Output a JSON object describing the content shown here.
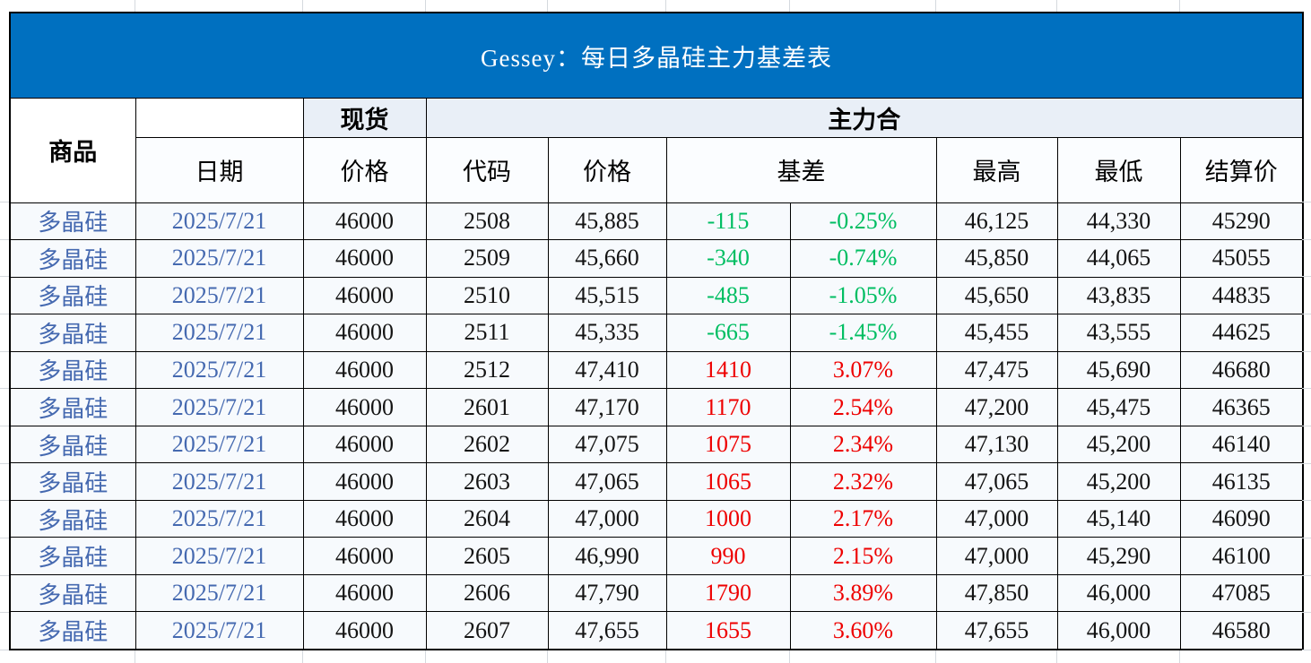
{
  "title": "Gessey：每日多晶硅主力基差表",
  "header": {
    "commodity": "商品",
    "date": "日期",
    "spot": "现货",
    "spot_price": "价格",
    "main_contract": "主力合",
    "code": "代码",
    "price": "价格",
    "basis": "基差",
    "high": "最高",
    "low": "最低",
    "settlement": "结算价"
  },
  "colors": {
    "title_bg": "#0070c0",
    "title_text": "#ffffff",
    "header_band_fill": "#e9eff7",
    "subheader_fill": "#fbfdff",
    "row_fill": "#f7fafd",
    "blue_text": "#4569b0",
    "negative_green": "#00be62",
    "positive_red": "#ee0000",
    "grid_border": "#000000"
  },
  "rows": [
    {
      "commodity": "多晶硅",
      "date": "2025/7/21",
      "spot_price": "46000",
      "code": "2508",
      "price": "45,885",
      "basis": "-115",
      "basis_pct": "-0.25%",
      "high": "46,125",
      "low": "44,330",
      "settlement": "45290"
    },
    {
      "commodity": "多晶硅",
      "date": "2025/7/21",
      "spot_price": "46000",
      "code": "2509",
      "price": "45,660",
      "basis": "-340",
      "basis_pct": "-0.74%",
      "high": "45,850",
      "low": "44,065",
      "settlement": "45055"
    },
    {
      "commodity": "多晶硅",
      "date": "2025/7/21",
      "spot_price": "46000",
      "code": "2510",
      "price": "45,515",
      "basis": "-485",
      "basis_pct": "-1.05%",
      "high": "45,650",
      "low": "43,835",
      "settlement": "44835"
    },
    {
      "commodity": "多晶硅",
      "date": "2025/7/21",
      "spot_price": "46000",
      "code": "2511",
      "price": "45,335",
      "basis": "-665",
      "basis_pct": "-1.45%",
      "high": "45,455",
      "low": "43,555",
      "settlement": "44625"
    },
    {
      "commodity": "多晶硅",
      "date": "2025/7/21",
      "spot_price": "46000",
      "code": "2512",
      "price": "47,410",
      "basis": "1410",
      "basis_pct": "3.07%",
      "high": "47,475",
      "low": "45,690",
      "settlement": "46680"
    },
    {
      "commodity": "多晶硅",
      "date": "2025/7/21",
      "spot_price": "46000",
      "code": "2601",
      "price": "47,170",
      "basis": "1170",
      "basis_pct": "2.54%",
      "high": "47,200",
      "low": "45,475",
      "settlement": "46365"
    },
    {
      "commodity": "多晶硅",
      "date": "2025/7/21",
      "spot_price": "46000",
      "code": "2602",
      "price": "47,075",
      "basis": "1075",
      "basis_pct": "2.34%",
      "high": "47,130",
      "low": "45,200",
      "settlement": "46140"
    },
    {
      "commodity": "多晶硅",
      "date": "2025/7/21",
      "spot_price": "46000",
      "code": "2603",
      "price": "47,065",
      "basis": "1065",
      "basis_pct": "2.32%",
      "high": "47,065",
      "low": "45,200",
      "settlement": "46135"
    },
    {
      "commodity": "多晶硅",
      "date": "2025/7/21",
      "spot_price": "46000",
      "code": "2604",
      "price": "47,000",
      "basis": "1000",
      "basis_pct": "2.17%",
      "high": "47,000",
      "low": "45,140",
      "settlement": "46090"
    },
    {
      "commodity": "多晶硅",
      "date": "2025/7/21",
      "spot_price": "46000",
      "code": "2605",
      "price": "46,990",
      "basis": "990",
      "basis_pct": "2.15%",
      "high": "47,000",
      "low": "45,290",
      "settlement": "46100"
    },
    {
      "commodity": "多晶硅",
      "date": "2025/7/21",
      "spot_price": "46000",
      "code": "2606",
      "price": "47,790",
      "basis": "1790",
      "basis_pct": "3.89%",
      "high": "47,850",
      "low": "46,000",
      "settlement": "47085"
    },
    {
      "commodity": "多晶硅",
      "date": "2025/7/21",
      "spot_price": "46000",
      "code": "2607",
      "price": "47,655",
      "basis": "1655",
      "basis_pct": "3.60%",
      "high": "47,655",
      "low": "46,000",
      "settlement": "46580"
    }
  ]
}
